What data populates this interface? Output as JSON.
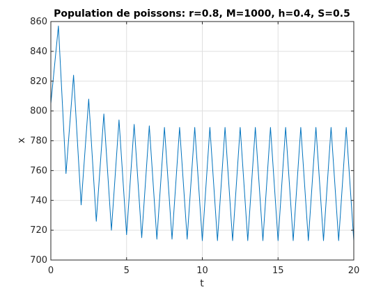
{
  "chart_data": {
    "type": "line",
    "title": "Population de poissons: r=0.8, M=1000, h=0.4, S=0.5",
    "xlabel": "t",
    "ylabel": "x",
    "xlim": [
      0,
      20
    ],
    "ylim": [
      700,
      860
    ],
    "xticks": [
      0,
      5,
      10,
      15,
      20
    ],
    "yticks": [
      700,
      720,
      740,
      760,
      780,
      800,
      820,
      840,
      860
    ],
    "grid": true,
    "series_color": "#0072bd",
    "series": [
      {
        "x": [
          0,
          0.5,
          1.0,
          1.5,
          2.0,
          2.5,
          3.0,
          3.5,
          4.0,
          4.5,
          5.0,
          5.5,
          6.0,
          6.5,
          7.0,
          7.5,
          8.0,
          8.5,
          9.0,
          9.5,
          10.0,
          10.5,
          11.0,
          11.5,
          12.0,
          12.5,
          13.0,
          13.5,
          14.0,
          14.5,
          15.0,
          15.5,
          16.0,
          16.5,
          17.0,
          17.5,
          18.0,
          18.5,
          19.0,
          19.5,
          20.0
        ],
        "y": [
          805,
          857,
          758,
          824,
          737,
          808,
          726,
          798,
          720,
          794,
          717,
          791,
          715,
          790,
          714,
          789,
          714,
          789,
          714,
          789,
          713,
          789,
          713,
          789,
          713,
          789,
          713,
          789,
          713,
          789,
          713,
          789,
          713,
          789,
          713,
          789,
          713,
          789,
          713,
          789,
          713
        ]
      }
    ]
  }
}
